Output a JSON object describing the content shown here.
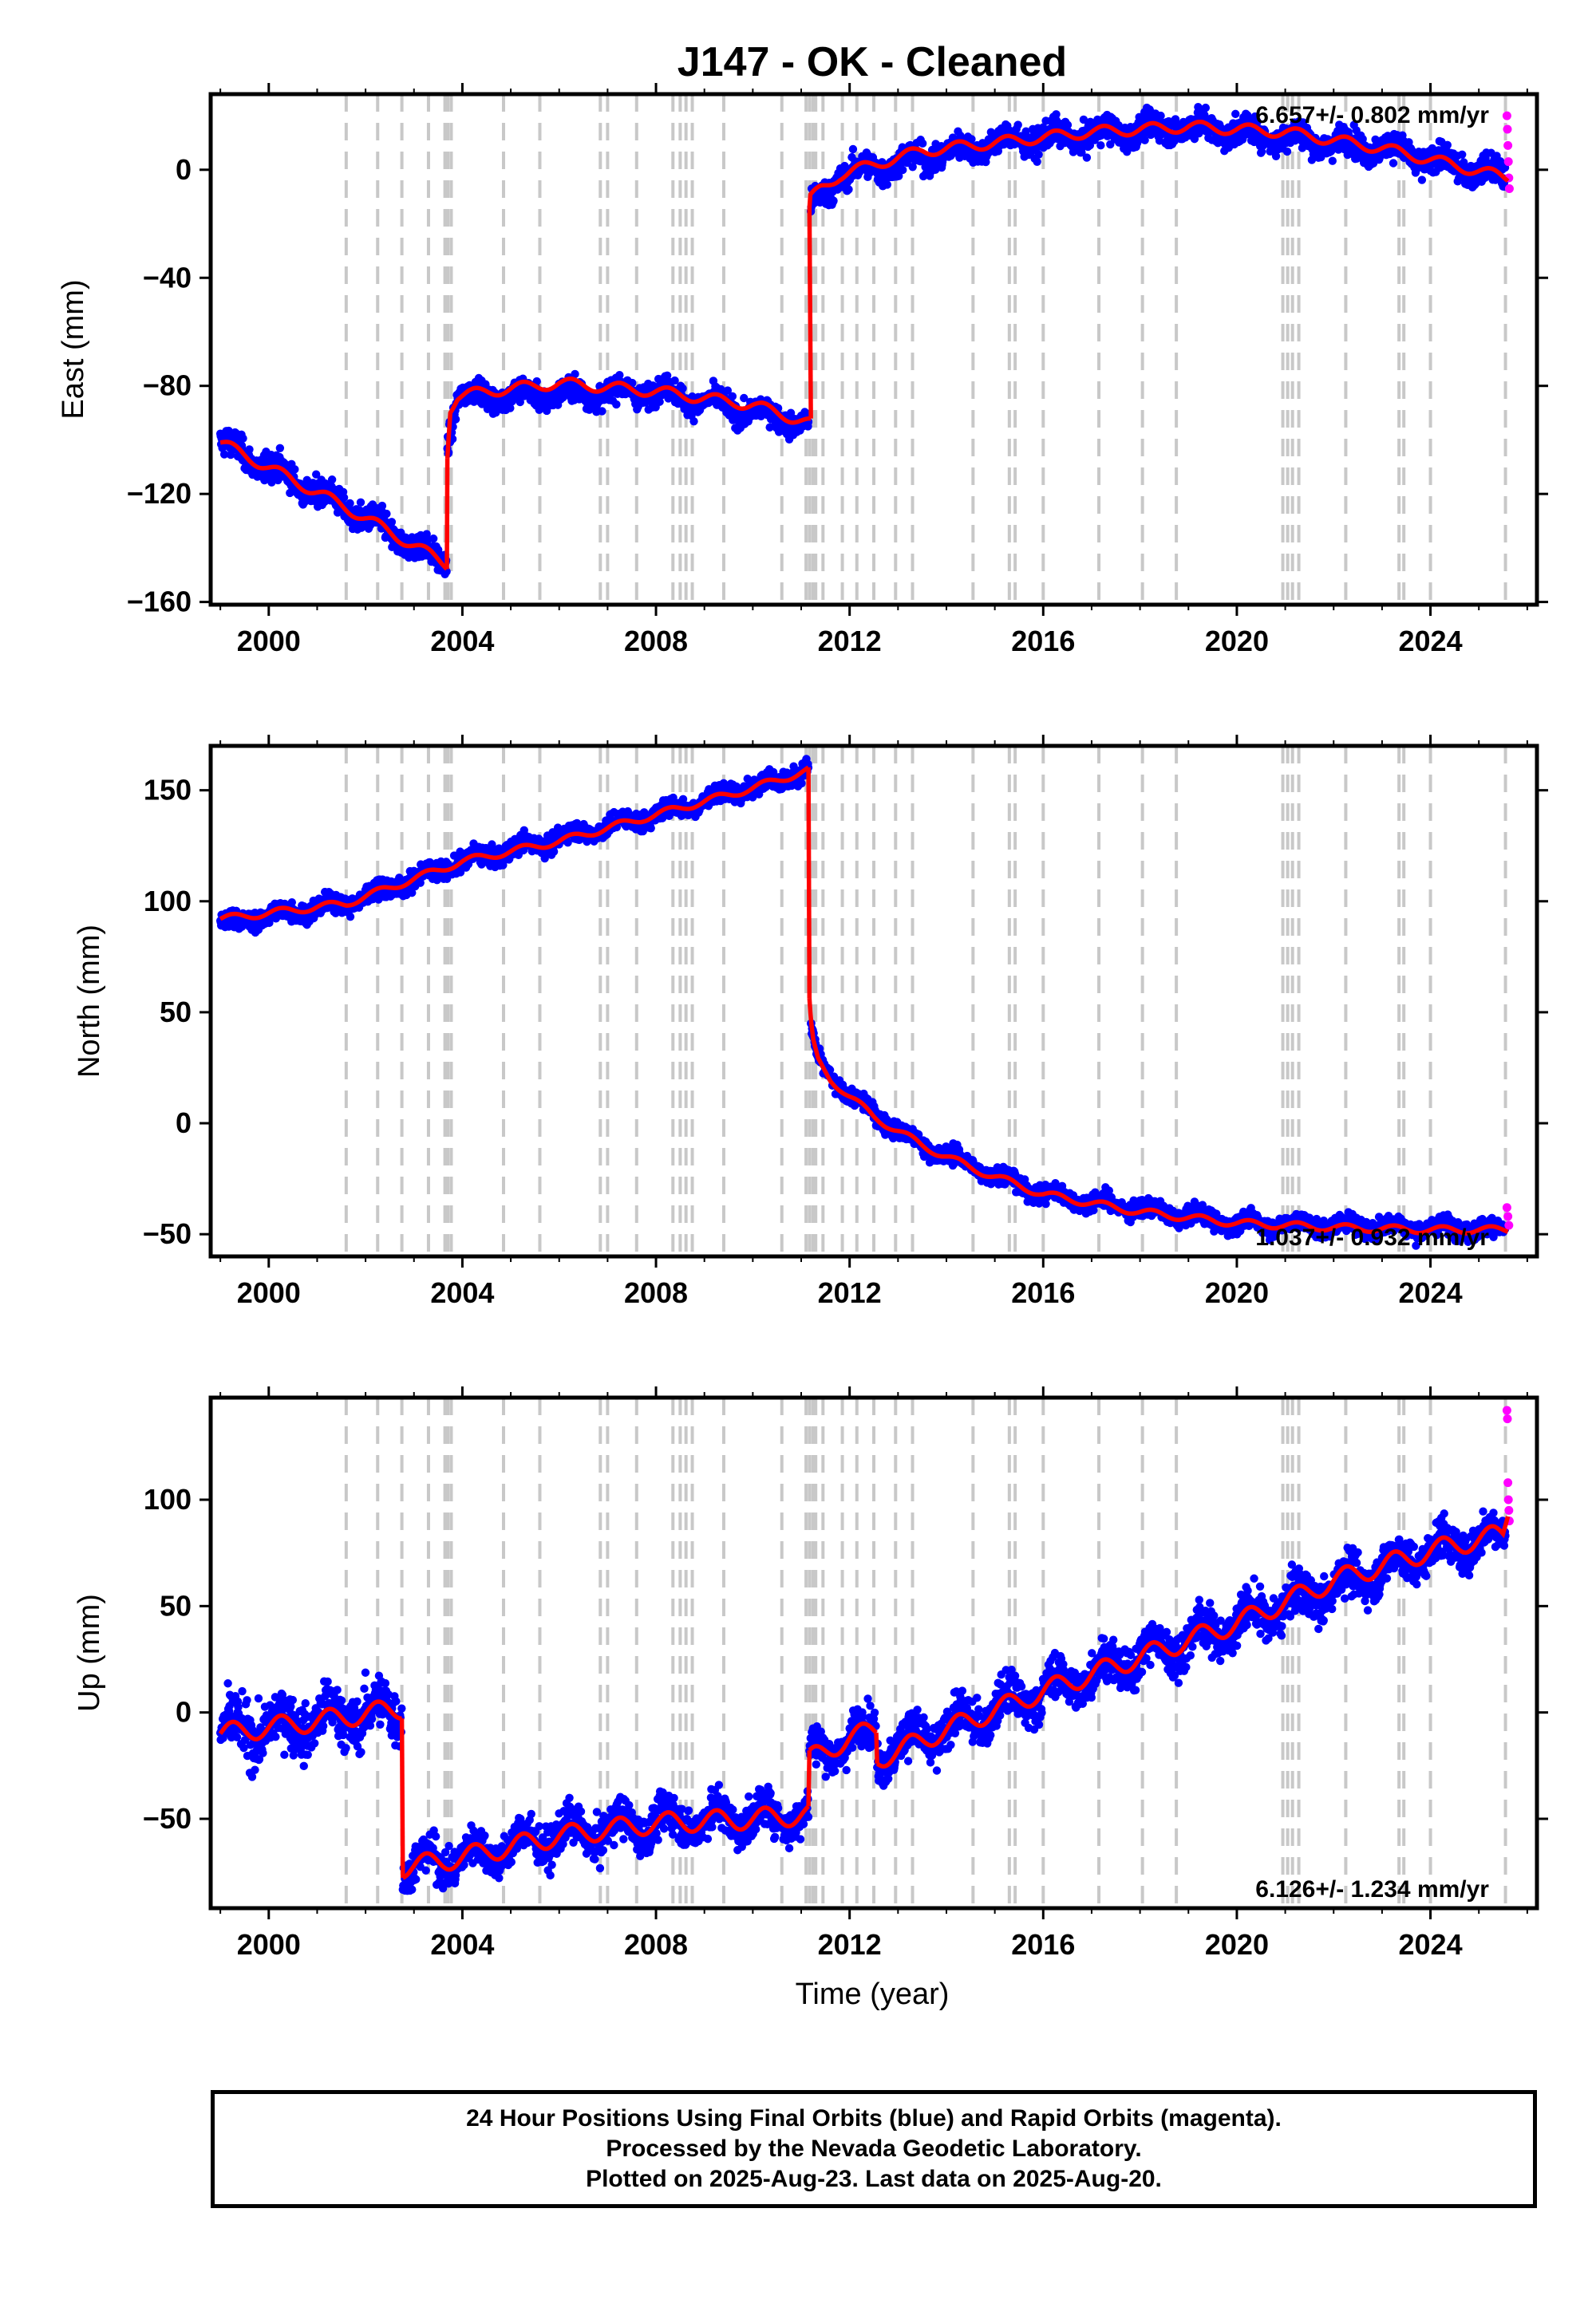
{
  "figure": {
    "title": "J147  - OK - Cleaned",
    "xlabel": "Time (year)"
  },
  "colors": {
    "final_orbits": "#0000ff",
    "rapid_orbits": "#ff00ff",
    "model": "#ff0000",
    "event_lines": "#c8c8c8",
    "frame": "#000000"
  },
  "footer": {
    "line1": "24 Hour Positions Using Final Orbits (blue) and Rapid Orbits (magenta).",
    "line2": "Processed by the Nevada Geodetic Laboratory.",
    "line3": "Plotted on 2025-Aug-23. Last data on 2025-Aug-20."
  },
  "chart_data": [
    {
      "type": "scatter",
      "ylabel": "East (mm)",
      "rate": "6.657+/- 0.802 mm/yr",
      "xlim": [
        1998.8,
        2026.2
      ],
      "ylim": [
        -161,
        28
      ],
      "yticks": [
        0,
        -40,
        -80,
        -120,
        -160
      ],
      "xticks": [
        2000,
        2004,
        2008,
        2012,
        2016,
        2020,
        2024
      ],
      "grid": false,
      "model": {
        "segments": [
          {
            "x": [
              1999.0,
              2001.6,
              2003.68
            ],
            "y": [
              -101,
              -125,
              -146
            ]
          },
          {
            "x": [
              2003.69,
              2003.75,
              2003.9,
              2004.5,
              2006.0,
              2008.0,
              2010.0,
              2011.2
            ],
            "y": [
              -105,
              -88,
              -84,
              -82,
              -79,
              -82,
              -87,
              -94
            ]
          },
          {
            "x": [
              2011.17,
              2011.19,
              2011.4,
              2011.8,
              2012.5,
              2013.5,
              2015.0,
              2017.0,
              2019.0,
              2021.0,
              2023.0,
              2025.6
            ],
            "y": [
              -16,
              -11,
              -7,
              -2,
              2,
              7,
              10,
              14,
              16,
              14,
              8,
              -3
            ]
          }
        ],
        "annual_amplitude": 2.5
      },
      "final_orbits": {
        "segments": [
          {
            "x": [
              1999.0,
              2001.6,
              2003.68
            ],
            "y": [
              -101,
              -125,
              -146
            ],
            "scatter": 3.5
          },
          {
            "x": [
              2003.69,
              2003.9,
              2008.0,
              2011.15
            ],
            "y": [
              -100,
              -84,
              -82,
              -94
            ],
            "scatter": 3.0
          },
          {
            "x": [
              2011.2,
              2011.8,
              2015.0,
              2019.0,
              2023.0,
              2025.55
            ],
            "y": [
              -15,
              -2,
              10,
              16,
              8,
              -3
            ],
            "scatter": 3.5
          }
        ],
        "count": 3200
      },
      "rapid_orbits": {
        "x": [
          2025.58,
          2025.59,
          2025.6,
          2025.61,
          2025.62,
          2025.63
        ],
        "y": [
          20,
          15,
          9,
          3,
          -3,
          -7
        ]
      },
      "event_years": [
        2001.6,
        2002.25,
        2002.75,
        2003.3,
        2003.64,
        2003.7,
        2003.77,
        2004.85,
        2005.6,
        2006.85,
        2007.0,
        2007.6,
        2008.35,
        2008.5,
        2008.62,
        2008.75,
        2009.4,
        2010.6,
        2011.1,
        2011.17,
        2011.24,
        2011.3,
        2011.45,
        2011.85,
        2012.15,
        2012.5,
        2012.95,
        2013.3,
        2014.55,
        2015.3,
        2015.42,
        2016.0,
        2017.15,
        2018.05,
        2018.75,
        2020.95,
        2021.05,
        2021.15,
        2021.28,
        2022.25,
        2023.35,
        2023.45,
        2024.0,
        2025.55
      ]
    },
    {
      "type": "scatter",
      "ylabel": "North (mm)",
      "rate": "1.037+/- 0.932 mm/yr",
      "xlim": [
        1998.8,
        2026.2
      ],
      "ylim": [
        -60,
        170
      ],
      "yticks": [
        150,
        100,
        50,
        0,
        -50
      ],
      "xticks": [
        2000,
        2004,
        2008,
        2012,
        2016,
        2020,
        2024
      ],
      "grid": false,
      "model": {
        "segments": [
          {
            "x": [
              1999.0,
              2001.6,
              2004.0,
              2006.0,
              2008.0,
              2010.0,
              2011.15
            ],
            "y": [
              92,
              99,
              118,
              127,
              139,
              151,
              159
            ]
          },
          {
            "x": [
              2011.17,
              2011.2,
              2011.25,
              2011.35,
              2011.6,
              2012.0,
              2012.5,
              2013.5,
              2014.5,
              2016.0,
              2018.0,
              2020.0,
              2022.0,
              2024.0,
              2025.6
            ],
            "y": [
              55,
              45,
              36,
              28,
              20,
              12,
              3,
              -10,
              -20,
              -32,
              -40,
              -45,
              -47,
              -48,
              -48
            ]
          }
        ],
        "annual_amplitude": 2.0
      },
      "final_orbits": {
        "segments": [
          {
            "x": [
              1999.0,
              2001.6,
              2004.0,
              2008.0,
              2011.15
            ],
            "y": [
              90,
              99,
              118,
              139,
              159
            ],
            "scatter": 3.0
          },
          {
            "x": [
              2011.2,
              2011.35,
              2012.0,
              2013.5,
              2016.0,
              2020.0,
              2025.55
            ],
            "y": [
              42,
              28,
              12,
              -10,
              -32,
              -45,
              -48
            ],
            "scatter": 2.8
          }
        ],
        "count": 3200
      },
      "rapid_orbits": {
        "x": [
          2025.58,
          2025.6,
          2025.62
        ],
        "y": [
          -38,
          -42,
          -46
        ]
      },
      "event_years": [
        2001.6,
        2002.25,
        2002.75,
        2003.3,
        2003.64,
        2003.7,
        2003.77,
        2004.85,
        2005.6,
        2006.85,
        2007.0,
        2007.6,
        2008.35,
        2008.5,
        2008.62,
        2008.75,
        2009.4,
        2010.6,
        2011.1,
        2011.17,
        2011.24,
        2011.3,
        2011.45,
        2011.85,
        2012.15,
        2012.5,
        2012.95,
        2013.3,
        2014.55,
        2015.3,
        2015.42,
        2016.0,
        2017.15,
        2018.05,
        2018.75,
        2020.95,
        2021.05,
        2021.15,
        2021.28,
        2022.25,
        2023.35,
        2023.45,
        2024.0,
        2025.55
      ]
    },
    {
      "type": "scatter",
      "ylabel": "Up (mm)",
      "rate": "6.126+/- 1.234 mm/yr",
      "xlim": [
        1998.8,
        2026.2
      ],
      "ylim": [
        -92,
        148
      ],
      "yticks": [
        100,
        50,
        0,
        -50
      ],
      "xticks": [
        2000,
        2004,
        2008,
        2012,
        2016,
        2020,
        2024
      ],
      "grid": false,
      "model": {
        "segments": [
          {
            "x": [
              1999.0,
              2001.0,
              2002.75
            ],
            "y": [
              -10,
              -4,
              2
            ]
          },
          {
            "x": [
              2002.77,
              2004.0,
              2006.0,
              2008.0,
              2010.0,
              2011.15
            ],
            "y": [
              -73,
              -68,
              -58,
              -52,
              -50,
              -48
            ]
          },
          {
            "x": [
              2011.17,
              2012.0,
              2012.55
            ],
            "y": [
              -22,
              -12,
              -8
            ]
          },
          {
            "x": [
              2012.57,
              2013.0,
              2014.0,
              2016.0,
              2018.0,
              2020.0,
              2022.0,
              2024.0,
              2025.5,
              2025.6
            ],
            "y": [
              -22,
              -18,
              -8,
              10,
              26,
              42,
              62,
              76,
              84,
              95
            ]
          }
        ],
        "annual_amplitude": 6.0
      },
      "final_orbits": {
        "segments": [
          {
            "x": [
              1999.0,
              2001.0,
              2002.75
            ],
            "y": [
              -10,
              -4,
              2
            ],
            "scatter": 9.0
          },
          {
            "x": [
              2002.77,
              2004.0,
              2006.0,
              2008.0,
              2011.15
            ],
            "y": [
              -73,
              -68,
              -58,
              -52,
              -48
            ],
            "scatter": 6.5
          },
          {
            "x": [
              2011.17,
              2012.0,
              2012.55
            ],
            "y": [
              -22,
              -12,
              -8
            ],
            "scatter": 6.5
          },
          {
            "x": [
              2012.57,
              2014.0,
              2016.0,
              2020.0,
              2024.0,
              2025.55
            ],
            "y": [
              -20,
              -8,
              10,
              42,
              76,
              84
            ],
            "scatter": 7.0
          }
        ],
        "count": 3600
      },
      "rapid_orbits": {
        "x": [
          2025.58,
          2025.59,
          2025.6,
          2025.61,
          2025.62,
          2025.63
        ],
        "y": [
          142,
          138,
          108,
          100,
          95,
          90
        ]
      },
      "event_years": [
        2001.6,
        2002.25,
        2002.75,
        2003.3,
        2003.64,
        2003.7,
        2003.77,
        2004.85,
        2005.6,
        2006.85,
        2007.0,
        2007.6,
        2008.35,
        2008.5,
        2008.62,
        2008.75,
        2009.4,
        2010.6,
        2011.1,
        2011.17,
        2011.24,
        2011.3,
        2011.45,
        2011.85,
        2012.15,
        2012.5,
        2012.95,
        2013.3,
        2014.55,
        2015.3,
        2015.42,
        2016.0,
        2017.15,
        2018.05,
        2018.75,
        2020.95,
        2021.05,
        2021.15,
        2021.28,
        2022.25,
        2023.35,
        2023.45,
        2024.0,
        2025.55
      ]
    }
  ]
}
